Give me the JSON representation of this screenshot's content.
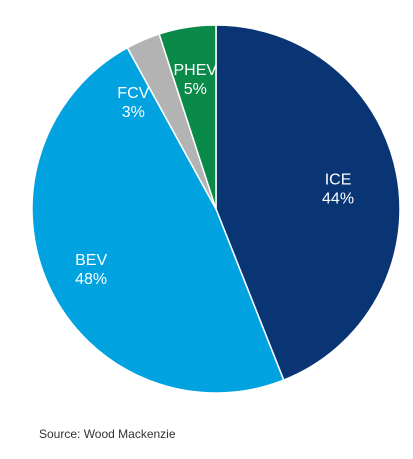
{
  "chart_data": {
    "type": "pie",
    "slices": [
      {
        "name": "ICE",
        "value": 44,
        "label": "44%",
        "color": "#0a3574"
      },
      {
        "name": "BEV",
        "value": 48,
        "label": "48%",
        "color": "#00a3e0"
      },
      {
        "name": "FCV",
        "value": 3,
        "label": "3%",
        "color": "#b3b3b3"
      },
      {
        "name": "PHEV",
        "value": 5,
        "label": "5%",
        "color": "#0a8a48"
      }
    ],
    "start": "12 o'clock",
    "direction": "clockwise",
    "slice_edge_color": "#ffffff"
  },
  "source": "Source: Wood Mackenzie"
}
